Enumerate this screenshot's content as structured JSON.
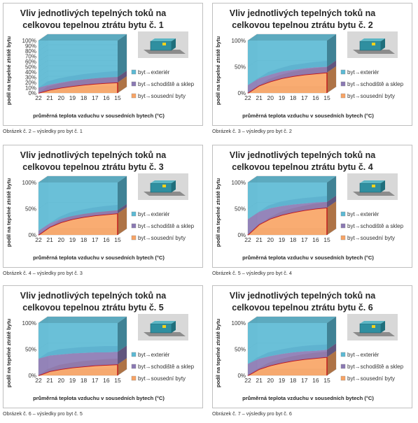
{
  "panels": [
    {
      "caption": "Obrázek č. 2 – výsledky pro byt č. 1",
      "chart_data": {
        "type": "area",
        "title": "Vliv jednotlivých tepelných toků na celkovou tepelnou ztrátu bytu č. 1",
        "title_lines": [
          "Vliv jednotlivých tepelných toků na",
          "celkovou tepelnou ztrátu bytu č. 1"
        ],
        "xlabel": "průměrná teplota vzduchu v sousedních bytech (°C)",
        "ylabel": "podíl na tepelné ztrátě bytu",
        "x": [
          "22",
          "21",
          "20",
          "19",
          "18",
          "17",
          "16",
          "15"
        ],
        "y_ticks": [
          "0%",
          "10%",
          "20%",
          "30%",
          "40%",
          "50%",
          "60%",
          "70%",
          "80%",
          "90%",
          "100%"
        ],
        "ylim": [
          0,
          100
        ],
        "stacked_percent": true,
        "series": [
          {
            "name": "byt→sousední byty",
            "color": "#f9a464",
            "values": [
              0,
              6,
              10,
              13,
              15.5,
              17.5,
              19,
              20
            ]
          },
          {
            "name": "byt→schodiště a sklep",
            "color": "#8b79b4",
            "values": [
              10,
              10,
              10,
              10.5,
              10.5,
              10.5,
              10.5,
              10.5
            ]
          },
          {
            "name": "byt→exteriér",
            "color": "#5bbad5",
            "values": [
              90,
              84,
              80,
              76.5,
              74,
              72,
              70.5,
              69.5
            ]
          }
        ]
      }
    },
    {
      "caption": "Obrázek č. 3 – výsledky pro byt č. 2",
      "chart_data": {
        "type": "area",
        "title": "Vliv jednotlivých tepelných toků na celkovou tepelnou ztrátu bytu č. 2",
        "title_lines": [
          "Vliv jednotlivých tepelných toků na",
          "celkovou tepelnou ztrátu bytu č. 2"
        ],
        "xlabel": "průměrná teplota vzduchu v sousedních bytech (°C)",
        "ylabel": "podíl na tepelné ztrátě bytu",
        "x": [
          "22",
          "21",
          "20",
          "19",
          "18",
          "17",
          "16",
          "15"
        ],
        "y_ticks": [
          "0%",
          "50%",
          "100%"
        ],
        "ylim": [
          0,
          100
        ],
        "stacked_percent": true,
        "series": [
          {
            "name": "byt→sousední byty",
            "color": "#f9a464",
            "values": [
              0,
              14,
              22,
              28,
              32,
              35,
              37,
              39
            ]
          },
          {
            "name": "byt→schodiště a sklep",
            "color": "#8b79b4",
            "values": [
              15,
              14,
              13,
              13,
              12,
              12,
              12,
              11
            ]
          },
          {
            "name": "byt→exteriér",
            "color": "#5bbad5",
            "values": [
              85,
              72,
              65,
              59,
              56,
              53,
              51,
              50
            ]
          }
        ]
      }
    },
    {
      "caption": "Obrázek č. 4 – výsledky pro byt č. 3",
      "chart_data": {
        "type": "area",
        "title": "Vliv jednotlivých tepelných toků na celkovou tepelnou ztrátu bytu č. 3",
        "title_lines": [
          "Vliv jednotlivých tepelných toků na",
          "celkovou tepelnou ztrátu bytu č. 3"
        ],
        "xlabel": "průměrná teplota vzduchu v sousedních bytech (°C)",
        "ylabel": "podíl na tepelné ztrátě bytu",
        "x": [
          "22",
          "21",
          "20",
          "19",
          "18",
          "17",
          "16",
          "15"
        ],
        "y_ticks": [
          "0%",
          "50%",
          "100%"
        ],
        "ylim": [
          0,
          100
        ],
        "stacked_percent": true,
        "series": [
          {
            "name": "byt→sousední byty",
            "color": "#f9a464",
            "values": [
              0,
              15,
              24,
              30,
              34,
              37,
              39,
              41
            ]
          },
          {
            "name": "byt→schodiště a sklep",
            "color": "#8b79b4",
            "values": [
              8,
              7,
              7,
              6,
              6,
              6,
              6,
              6
            ]
          },
          {
            "name": "byt→exteriér",
            "color": "#5bbad5",
            "values": [
              92,
              78,
              69,
              64,
              60,
              57,
              55,
              53
            ]
          }
        ]
      }
    },
    {
      "caption": "Obrázek č. 5 – výsledky pro byt č. 4",
      "chart_data": {
        "type": "area",
        "title": "Vliv jednotlivých tepelných toků na celkovou tepelnou ztrátu bytu č. 4",
        "title_lines": [
          "Vliv jednotlivých tepelných toků na",
          "celkovou tepelnou ztrátu bytu č. 4"
        ],
        "xlabel": "průměrná teplota vzduchu v sousedních bytech (°C)",
        "ylabel": "podíl na tepelné ztrátě bytu",
        "x": [
          "22",
          "21",
          "20",
          "19",
          "18",
          "17",
          "16",
          "15"
        ],
        "y_ticks": [
          "0%",
          "50%",
          "100%"
        ],
        "ylim": [
          0,
          100
        ],
        "stacked_percent": true,
        "series": [
          {
            "name": "byt→sousední byty",
            "color": "#f9a464",
            "values": [
              0,
              20,
              31,
              38,
              43,
              47,
              50,
              52
            ]
          },
          {
            "name": "byt→schodiště a sklep",
            "color": "#8b79b4",
            "values": [
              30,
              24,
              20,
              17,
              15,
              13,
              12,
              11
            ]
          },
          {
            "name": "byt→exteriér",
            "color": "#5bbad5",
            "values": [
              70,
              56,
              49,
              45,
              42,
              40,
              38,
              37
            ]
          }
        ]
      }
    },
    {
      "caption": "Obrázek č. 6 – výsledky pro byt č. 5",
      "chart_data": {
        "type": "area",
        "title": "Vliv jednotlivých tepelných toků na celkovou tepelnou ztrátu bytu č. 5",
        "title_lines": [
          "Vliv jednotlivých tepelných toků na",
          "celkovou tepelnou ztrátu bytu č. 5"
        ],
        "xlabel": "průměrná teplota vzduchu v sousedních bytech (°C)",
        "ylabel": "podíl na tepelné ztrátě bytu",
        "x": [
          "22",
          "21",
          "20",
          "19",
          "18",
          "17",
          "16",
          "15"
        ],
        "y_ticks": [
          "0%",
          "50%",
          "100%"
        ],
        "ylim": [
          0,
          100
        ],
        "stacked_percent": true,
        "series": [
          {
            "name": "byt→sousední byty",
            "color": "#f9a464",
            "values": [
              0,
              8,
              12,
              15,
              17,
              19,
              20,
              21
            ]
          },
          {
            "name": "byt→schodiště a sklep",
            "color": "#8b79b4",
            "values": [
              32,
              30,
              28,
              27,
              26,
              25,
              24,
              24
            ]
          },
          {
            "name": "byt→exteriér",
            "color": "#5bbad5",
            "values": [
              68,
              62,
              60,
              58,
              57,
              56,
              56,
              55
            ]
          }
        ]
      }
    },
    {
      "caption": "Obrázek č. 7 – výsledky pro byt č. 6",
      "chart_data": {
        "type": "area",
        "title": "Vliv jednotlivých tepelných toků na celkovou tepelnou ztrátu bytu č. 6",
        "title_lines": [
          "Vliv jednotlivých tepelných toků na",
          "celkovou tepelnou ztrátu bytu č. 6"
        ],
        "xlabel": "průměrná teplota vzduchu v sousedních bytech (°C)",
        "ylabel": "podíl na tepelné ztrátě bytu",
        "x": [
          "22",
          "21",
          "20",
          "19",
          "18",
          "17",
          "16",
          "15"
        ],
        "y_ticks": [
          "0%",
          "50%",
          "100%"
        ],
        "ylim": [
          0,
          100
        ],
        "stacked_percent": true,
        "series": [
          {
            "name": "byt→sousední byty",
            "color": "#f9a464",
            "values": [
              0,
              12,
              19,
              24,
              28,
              31,
              33,
              35
            ]
          },
          {
            "name": "byt→schodiště a sklep",
            "color": "#8b79b4",
            "values": [
              22,
              20,
              18,
              17,
              16,
              15,
              14,
              14
            ]
          },
          {
            "name": "byt→exteriér",
            "color": "#5bbad5",
            "values": [
              78,
              68,
              63,
              59,
              56,
              54,
              53,
              51
            ]
          }
        ]
      }
    }
  ]
}
